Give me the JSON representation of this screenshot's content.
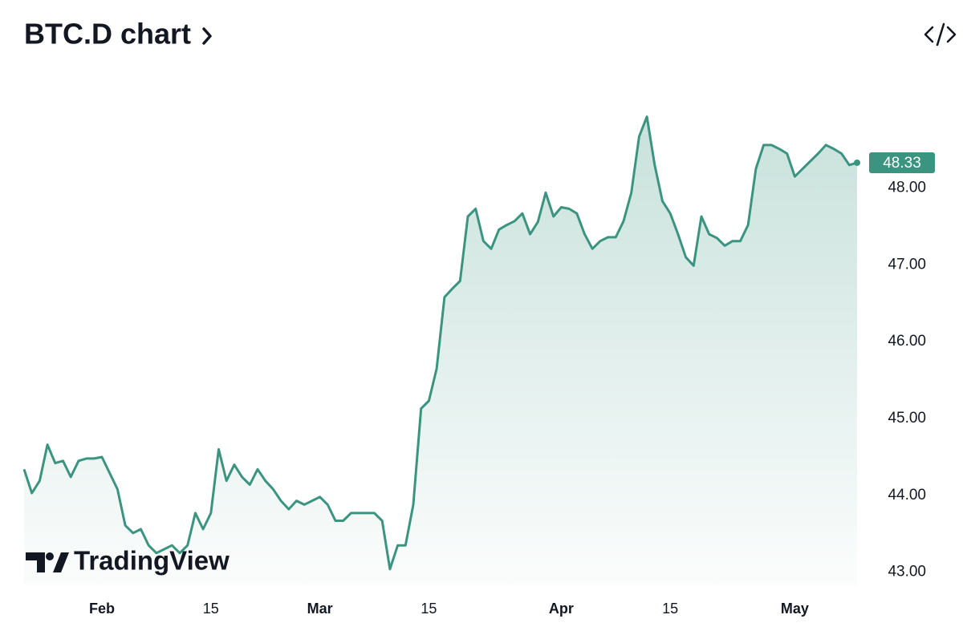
{
  "chart_data": {
    "type": "area",
    "title": "BTC.D chart",
    "watermark": "TradingView",
    "color": "#3b9480",
    "x": [
      "Jan 22",
      "Jan 23",
      "Jan 24",
      "Jan 25",
      "Jan 26",
      "Jan 27",
      "Jan 28",
      "Jan 29",
      "Jan 30",
      "Jan 31",
      "Feb 1",
      "Feb 2",
      "Feb 3",
      "Feb 4",
      "Feb 5",
      "Feb 6",
      "Feb 7",
      "Feb 8",
      "Feb 9",
      "Feb 10",
      "Feb 11",
      "Feb 12",
      "Feb 13",
      "Feb 14",
      "Feb 15",
      "Feb 16",
      "Feb 17",
      "Feb 18",
      "Feb 19",
      "Feb 20",
      "Feb 21",
      "Feb 22",
      "Feb 23",
      "Feb 24",
      "Feb 25",
      "Feb 26",
      "Feb 27",
      "Feb 28",
      "Mar 1",
      "Mar 2",
      "Mar 3",
      "Mar 4",
      "Mar 5",
      "Mar 6",
      "Mar 7",
      "Mar 8",
      "Mar 9",
      "Mar 10",
      "Mar 11",
      "Mar 12",
      "Mar 13",
      "Mar 14",
      "Mar 15",
      "Mar 16",
      "Mar 17",
      "Mar 18",
      "Mar 19",
      "Mar 20",
      "Mar 21",
      "Mar 22",
      "Mar 23",
      "Mar 24",
      "Mar 25",
      "Mar 26",
      "Mar 27",
      "Mar 28",
      "Mar 29",
      "Mar 30",
      "Mar 31",
      "Apr 1",
      "Apr 2",
      "Apr 3",
      "Apr 4",
      "Apr 5",
      "Apr 6",
      "Apr 7",
      "Apr 8",
      "Apr 9",
      "Apr 10",
      "Apr 11",
      "Apr 12",
      "Apr 13",
      "Apr 14",
      "Apr 15",
      "Apr 16",
      "Apr 17",
      "Apr 18",
      "Apr 19",
      "Apr 20",
      "Apr 21",
      "Apr 22",
      "Apr 23",
      "Apr 24",
      "Apr 25",
      "Apr 26",
      "Apr 27",
      "Apr 28",
      "Apr 29",
      "Apr 30",
      "May 1",
      "May 2",
      "May 3",
      "May 4",
      "May 5",
      "May 6",
      "May 7",
      "May 8",
      "May 9"
    ],
    "values": [
      44.34,
      44.03,
      44.19,
      44.66,
      44.42,
      44.45,
      44.24,
      44.45,
      44.48,
      44.48,
      44.5,
      44.29,
      44.08,
      43.61,
      43.51,
      43.56,
      43.35,
      43.25,
      43.3,
      43.35,
      43.25,
      43.35,
      43.77,
      43.56,
      43.77,
      44.6,
      44.19,
      44.4,
      44.24,
      44.14,
      44.34,
      44.19,
      44.08,
      43.93,
      43.82,
      43.93,
      43.88,
      43.93,
      43.98,
      43.88,
      43.67,
      43.67,
      43.77,
      43.77,
      43.77,
      43.77,
      43.67,
      43.04,
      43.35,
      43.35,
      43.88,
      45.13,
      45.23,
      45.65,
      46.58,
      46.69,
      46.79,
      47.63,
      47.73,
      47.31,
      47.21,
      47.46,
      47.52,
      47.57,
      47.67,
      47.4,
      47.56,
      47.94,
      47.63,
      47.75,
      47.73,
      47.67,
      47.4,
      47.21,
      47.31,
      47.36,
      47.36,
      47.57,
      47.94,
      48.67,
      48.93,
      48.3,
      47.83,
      47.67,
      47.4,
      47.1,
      46.99,
      47.63,
      47.4,
      47.35,
      47.25,
      47.31,
      47.31,
      47.52,
      48.25,
      48.56,
      48.56,
      48.51,
      48.45,
      48.15,
      48.25,
      48.35,
      48.45,
      48.56,
      48.51,
      48.45,
      48.3,
      48.33
    ],
    "xticks": [
      {
        "value": "Feb 1",
        "label": "Feb"
      },
      {
        "value": "Feb 15",
        "label": "15"
      },
      {
        "value": "Mar 1",
        "label": "Mar"
      },
      {
        "value": "Mar 15",
        "label": "15"
      },
      {
        "value": "Apr 1",
        "label": "Apr"
      },
      {
        "value": "Apr 15",
        "label": "15"
      },
      {
        "value": "May 1",
        "label": "May"
      }
    ],
    "ylim": [
      42.83,
      49.3
    ],
    "yticks": [
      {
        "value": 43,
        "label": "43.00"
      },
      {
        "value": 44,
        "label": "44.00"
      },
      {
        "value": 45,
        "label": "45.00"
      },
      {
        "value": 46,
        "label": "46.00"
      },
      {
        "value": 47,
        "label": "47.00"
      },
      {
        "value": 48,
        "label": "48.00"
      }
    ],
    "grid": false
  }
}
